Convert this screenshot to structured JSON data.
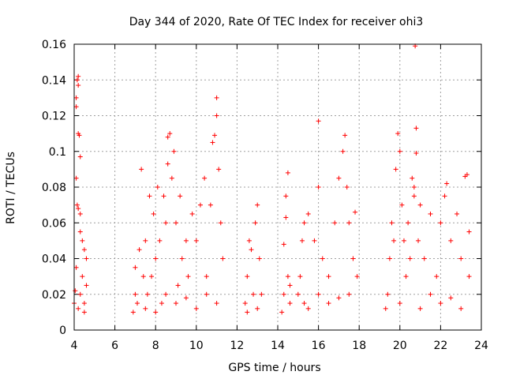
{
  "chart_data": {
    "type": "scatter",
    "title": "Day 344 of 2020, Rate Of TEC Index for receiver ohi3",
    "xlabel": "GPS time / hours",
    "ylabel": "ROTI / TECUs",
    "xlim": [
      4,
      24
    ],
    "ylim": [
      0,
      0.16
    ],
    "xticks": [
      4,
      6,
      8,
      10,
      12,
      14,
      16,
      18,
      20,
      22,
      24
    ],
    "yticks": [
      0,
      0.02,
      0.04,
      0.06,
      0.08,
      0.1,
      0.12,
      0.14,
      0.16
    ],
    "ytick_labels": [
      "0",
      "0.02",
      "0.04",
      "0.06",
      "0.08",
      "0.1",
      "0.12",
      "0.14",
      "0.16"
    ],
    "grid": true,
    "marker": "plus",
    "color": "#ff0000",
    "series": [
      {
        "points": [
          [
            4.0,
            0.015
          ],
          [
            4.05,
            0.022
          ],
          [
            4.1,
            0.035
          ],
          [
            4.1,
            0.085
          ],
          [
            4.1,
            0.125
          ],
          [
            4.1,
            0.13
          ],
          [
            4.15,
            0.14
          ],
          [
            4.2,
            0.142
          ],
          [
            4.2,
            0.137
          ],
          [
            4.2,
            0.11
          ],
          [
            4.25,
            0.109
          ],
          [
            4.3,
            0.097
          ],
          [
            4.15,
            0.07
          ],
          [
            4.2,
            0.068
          ],
          [
            4.3,
            0.065
          ],
          [
            4.3,
            0.055
          ],
          [
            4.4,
            0.05
          ],
          [
            4.5,
            0.045
          ],
          [
            4.6,
            0.04
          ],
          [
            4.6,
            0.025
          ],
          [
            4.5,
            0.015
          ],
          [
            4.2,
            0.012
          ],
          [
            4.4,
            0.03
          ],
          [
            4.3,
            0.02
          ],
          [
            4.5,
            0.01
          ],
          [
            6.9,
            0.01
          ],
          [
            7.0,
            0.02
          ],
          [
            7.0,
            0.035
          ],
          [
            7.1,
            0.015
          ],
          [
            7.2,
            0.045
          ],
          [
            7.3,
            0.09
          ],
          [
            7.4,
            0.03
          ],
          [
            7.5,
            0.05
          ],
          [
            7.6,
            0.02
          ],
          [
            7.7,
            0.075
          ],
          [
            7.8,
            0.03
          ],
          [
            7.9,
            0.065
          ],
          [
            8.0,
            0.04
          ],
          [
            8.1,
            0.08
          ],
          [
            8.2,
            0.05
          ],
          [
            8.3,
            0.015
          ],
          [
            8.4,
            0.075
          ],
          [
            8.5,
            0.06
          ],
          [
            8.6,
            0.093
          ],
          [
            8.6,
            0.108
          ],
          [
            8.7,
            0.11
          ],
          [
            8.8,
            0.085
          ],
          [
            8.9,
            0.1
          ],
          [
            9.0,
            0.06
          ],
          [
            9.1,
            0.025
          ],
          [
            9.2,
            0.075
          ],
          [
            9.3,
            0.04
          ],
          [
            9.5,
            0.05
          ],
          [
            9.6,
            0.03
          ],
          [
            9.8,
            0.065
          ],
          [
            10.0,
            0.05
          ],
          [
            10.2,
            0.07
          ],
          [
            10.4,
            0.085
          ],
          [
            10.5,
            0.03
          ],
          [
            10.7,
            0.07
          ],
          [
            10.8,
            0.105
          ],
          [
            10.9,
            0.109
          ],
          [
            11.0,
            0.13
          ],
          [
            11.0,
            0.12
          ],
          [
            11.1,
            0.09
          ],
          [
            11.2,
            0.06
          ],
          [
            11.3,
            0.04
          ],
          [
            8.0,
            0.01
          ],
          [
            9.0,
            0.015
          ],
          [
            10.0,
            0.012
          ],
          [
            11.0,
            0.015
          ],
          [
            7.5,
            0.012
          ],
          [
            8.5,
            0.02
          ],
          [
            9.5,
            0.018
          ],
          [
            10.5,
            0.02
          ],
          [
            12.4,
            0.015
          ],
          [
            12.5,
            0.03
          ],
          [
            12.6,
            0.05
          ],
          [
            12.7,
            0.045
          ],
          [
            12.8,
            0.02
          ],
          [
            12.9,
            0.06
          ],
          [
            13.0,
            0.07
          ],
          [
            13.1,
            0.04
          ],
          [
            13.2,
            0.02
          ],
          [
            12.5,
            0.01
          ],
          [
            13.0,
            0.012
          ],
          [
            14.2,
            0.01
          ],
          [
            14.3,
            0.02
          ],
          [
            14.3,
            0.048
          ],
          [
            14.4,
            0.075
          ],
          [
            14.5,
            0.088
          ],
          [
            14.5,
            0.03
          ],
          [
            14.6,
            0.015
          ],
          [
            14.4,
            0.063
          ],
          [
            14.6,
            0.025
          ],
          [
            15.0,
            0.02
          ],
          [
            15.1,
            0.03
          ],
          [
            15.2,
            0.05
          ],
          [
            15.3,
            0.06
          ],
          [
            15.5,
            0.065
          ],
          [
            15.8,
            0.05
          ],
          [
            16.0,
            0.08
          ],
          [
            16.0,
            0.117
          ],
          [
            16.2,
            0.04
          ],
          [
            16.5,
            0.03
          ],
          [
            16.8,
            0.06
          ],
          [
            17.0,
            0.085
          ],
          [
            17.2,
            0.1
          ],
          [
            17.3,
            0.109
          ],
          [
            17.4,
            0.08
          ],
          [
            17.5,
            0.06
          ],
          [
            17.7,
            0.04
          ],
          [
            17.8,
            0.066
          ],
          [
            17.9,
            0.03
          ],
          [
            15.5,
            0.012
          ],
          [
            16.5,
            0.015
          ],
          [
            17.5,
            0.02
          ],
          [
            16.0,
            0.02
          ],
          [
            17.0,
            0.018
          ],
          [
            15.3,
            0.015
          ],
          [
            19.3,
            0.012
          ],
          [
            19.4,
            0.02
          ],
          [
            19.5,
            0.04
          ],
          [
            19.6,
            0.06
          ],
          [
            19.7,
            0.05
          ],
          [
            19.8,
            0.09
          ],
          [
            19.9,
            0.11
          ],
          [
            20.0,
            0.1
          ],
          [
            20.1,
            0.07
          ],
          [
            20.2,
            0.05
          ],
          [
            20.3,
            0.03
          ],
          [
            20.4,
            0.06
          ],
          [
            20.5,
            0.04
          ],
          [
            20.6,
            0.085
          ],
          [
            20.7,
            0.08
          ],
          [
            20.7,
            0.075
          ],
          [
            20.8,
            0.113
          ],
          [
            20.8,
            0.099
          ],
          [
            20.75,
            0.159
          ],
          [
            20.9,
            0.05
          ],
          [
            21.0,
            0.07
          ],
          [
            21.2,
            0.04
          ],
          [
            21.5,
            0.065
          ],
          [
            21.8,
            0.03
          ],
          [
            22.0,
            0.06
          ],
          [
            22.2,
            0.075
          ],
          [
            22.3,
            0.082
          ],
          [
            22.5,
            0.05
          ],
          [
            22.8,
            0.065
          ],
          [
            23.0,
            0.04
          ],
          [
            23.2,
            0.086
          ],
          [
            23.3,
            0.087
          ],
          [
            23.4,
            0.055
          ],
          [
            23.4,
            0.03
          ],
          [
            20.0,
            0.015
          ],
          [
            21.0,
            0.012
          ],
          [
            22.0,
            0.015
          ],
          [
            23.0,
            0.012
          ],
          [
            21.5,
            0.02
          ],
          [
            22.5,
            0.018
          ]
        ]
      }
    ]
  }
}
